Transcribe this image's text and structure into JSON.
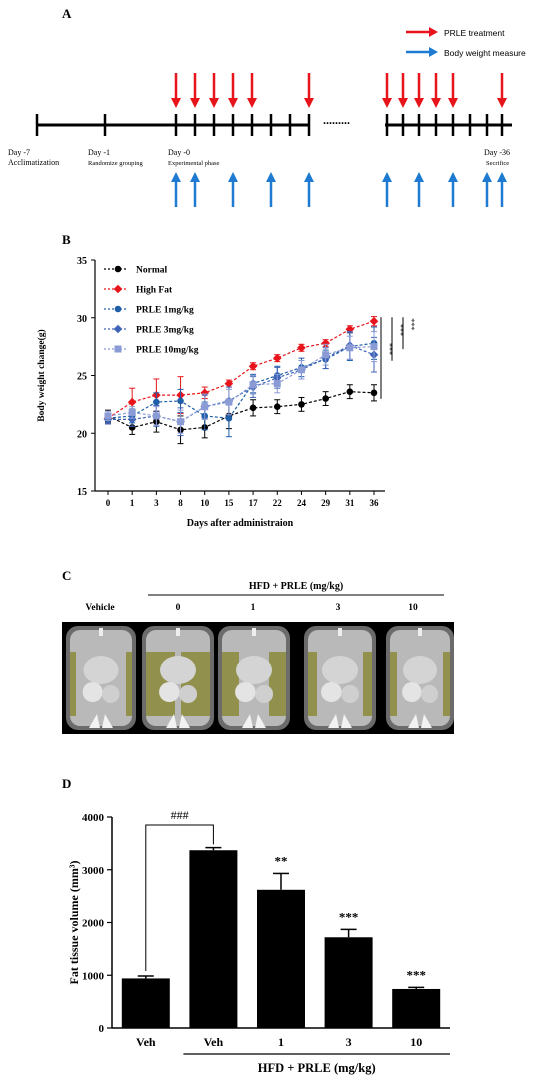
{
  "panels": {
    "a": {
      "letter": "A",
      "legend": [
        {
          "label": "PRLE treatment",
          "color": "#e8141b"
        },
        {
          "label": "Body weight measure",
          "color": "#1f7bd1"
        }
      ],
      "timeline_labels": [
        {
          "line1": "Day -7",
          "line2": "Acclimatization"
        },
        {
          "line1": "Day -1",
          "line2": "Randomize grouping"
        },
        {
          "line1": "Day -0",
          "line2": "Experimental phase"
        },
        {
          "line1": "Day -36",
          "line2": "Secrifice"
        }
      ],
      "ellipsis": "........."
    },
    "b": {
      "letter": "B"
    },
    "c": {
      "letter": "C",
      "header": "HFD + PRLE (mg/kg)",
      "columns": [
        "Vehicle",
        "0",
        "1",
        "3",
        "10"
      ],
      "scan_icon_names": [
        "ct-scan-vehicle",
        "ct-scan-0",
        "ct-scan-1",
        "ct-scan-3",
        "ct-scan-10"
      ]
    },
    "d": {
      "letter": "D"
    }
  },
  "chart_data": [
    {
      "type": "line",
      "xlabel": "Days after administraion",
      "ylabel": "Body weight change(g)",
      "categories": [
        "0",
        "1",
        "3",
        "8",
        "10",
        "15",
        "17",
        "22",
        "24",
        "29",
        "31",
        "36"
      ],
      "ylim": [
        15,
        35
      ],
      "yticks": [
        15,
        20,
        25,
        30,
        35
      ],
      "legend_position": "top-left",
      "significance": [
        "***",
        "***",
        "***"
      ],
      "series": [
        {
          "name": "Normal",
          "color": "#000000",
          "marker": "circle",
          "values": [
            21.5,
            20.5,
            21.0,
            20.3,
            20.5,
            21.5,
            22.2,
            22.3,
            22.5,
            23.0,
            23.6,
            23.5
          ],
          "errors": [
            0.5,
            0.6,
            0.9,
            1.2,
            0.9,
            1.1,
            0.7,
            0.6,
            0.6,
            0.6,
            0.6,
            0.7
          ]
        },
        {
          "name": "High Fat",
          "color": "#e8141b",
          "marker": "diamond",
          "values": [
            21.3,
            22.7,
            23.3,
            23.3,
            23.5,
            24.3,
            25.8,
            26.5,
            27.4,
            27.8,
            29.0,
            29.7
          ],
          "errors": [
            0.4,
            1.2,
            1.4,
            1.6,
            0.5,
            0.3,
            0.3,
            0.3,
            0.3,
            0.3,
            0.3,
            0.4
          ]
        },
        {
          "name": "PRLE 1mg/kg",
          "color": "#1f5fa8",
          "marker": "circle",
          "values": [
            21.3,
            21.5,
            22.7,
            22.8,
            21.5,
            21.3,
            24.3,
            25.0,
            25.7,
            26.4,
            27.5,
            27.8
          ],
          "errors": [
            0.4,
            0.6,
            0.8,
            1.0,
            1.2,
            1.6,
            0.8,
            0.8,
            0.8,
            0.8,
            1.2,
            1.4
          ]
        },
        {
          "name": "PRLE 3mg/kg",
          "color": "#3f63b6",
          "marker": "diamond",
          "values": [
            21.2,
            21.2,
            21.5,
            21.0,
            22.3,
            22.8,
            24.0,
            24.8,
            25.5,
            26.5,
            27.6,
            26.8
          ],
          "errors": [
            0.4,
            0.6,
            0.9,
            1.2,
            1.0,
            1.2,
            0.9,
            0.9,
            0.8,
            0.9,
            1.2,
            1.5
          ]
        },
        {
          "name": "PRLE 10mg/kg",
          "color": "#8a9bd6",
          "marker": "square",
          "values": [
            21.5,
            21.8,
            21.5,
            21.0,
            22.3,
            22.7,
            24.2,
            24.3,
            25.5,
            26.8,
            27.4,
            27.5
          ],
          "errors": [
            0.4,
            0.5,
            0.8,
            1.0,
            1.1,
            1.1,
            0.8,
            0.8,
            0.8,
            0.9,
            1.0,
            1.3
          ]
        }
      ]
    },
    {
      "type": "bar",
      "ylabel": "Fat tissue volume (mm³)",
      "categories": [
        "Veh",
        "Veh",
        "1",
        "3",
        "10"
      ],
      "group_label": "HFD + PRLE (mg/kg)",
      "values": [
        940,
        3370,
        2620,
        1720,
        740
      ],
      "errors": [
        45,
        50,
        310,
        150,
        30
      ],
      "annotations": [
        "",
        "",
        "**",
        "***",
        "***"
      ],
      "bracket_label": "###",
      "ylim": [
        0,
        4000
      ],
      "yticks": [
        0,
        1000,
        2000,
        3000,
        4000
      ],
      "color": "#000000"
    }
  ]
}
